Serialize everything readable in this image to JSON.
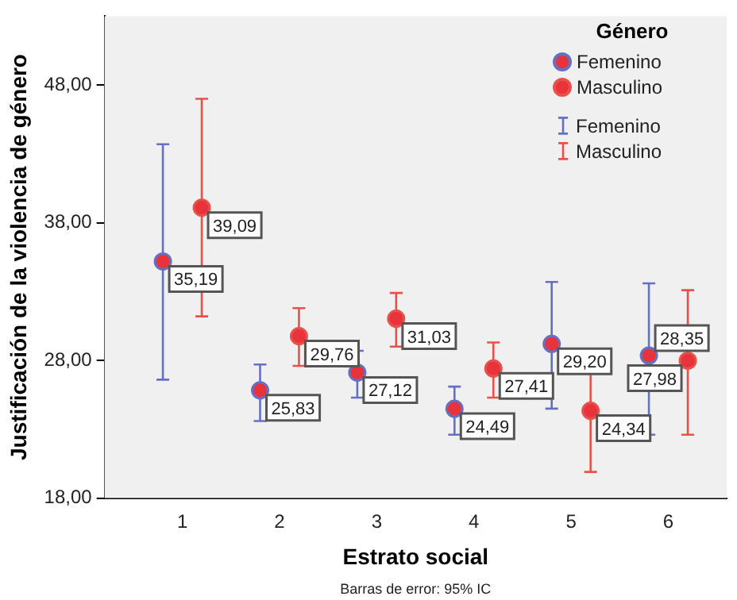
{
  "chart_data": {
    "type": "scatter",
    "xlabel": "Estrato social",
    "ylabel": "Justificación de la violencia de género",
    "legend_title": "Género",
    "legend": "top right",
    "marker": "circle",
    "xlim": [
      0.2,
      6.6
    ],
    "xticks": [
      1,
      2,
      3,
      4,
      5,
      6
    ],
    "ylim": [
      18,
      53
    ],
    "yticks": [
      {
        "value": 18,
        "label": "18,00"
      },
      {
        "value": 28,
        "label": "28,00"
      },
      {
        "value": 38,
        "label": "38,00"
      },
      {
        "value": 48,
        "label": "48,00"
      }
    ],
    "series": [
      {
        "name": "Femenino",
        "color": "#6670c0",
        "x": [
          0.8,
          1.8,
          2.8,
          3.8,
          4.8,
          5.8
        ],
        "values": [
          35.19,
          25.83,
          27.12,
          24.49,
          29.2,
          28.35
        ],
        "errors": [
          [
            26.6,
            43.7
          ],
          [
            23.6,
            27.7
          ],
          [
            25.3,
            28.7
          ],
          [
            22.6,
            26.1
          ],
          [
            24.5,
            33.7
          ],
          [
            22.6,
            33.6
          ]
        ],
        "value_labels": [
          "35,19",
          "25,83",
          "27,12",
          "24,49",
          "29,20",
          "28,35"
        ]
      },
      {
        "name": "Masculino",
        "color": "#e8504a",
        "x": [
          1.2,
          2.2,
          3.2,
          4.2,
          5.2,
          6.2
        ],
        "values": [
          39.09,
          29.76,
          31.03,
          27.41,
          24.34,
          27.98
        ],
        "errors": [
          [
            31.2,
            47.0
          ],
          [
            27.6,
            31.8
          ],
          [
            29.0,
            32.9
          ],
          [
            25.3,
            29.3
          ],
          [
            19.9,
            28.5
          ],
          [
            22.6,
            33.1
          ]
        ],
        "value_labels": [
          "39,09",
          "29,76",
          "31,03",
          "27,41",
          "24,34",
          "27,98"
        ]
      }
    ],
    "annotations": [
      "Barras de error: 95% IC"
    ]
  }
}
